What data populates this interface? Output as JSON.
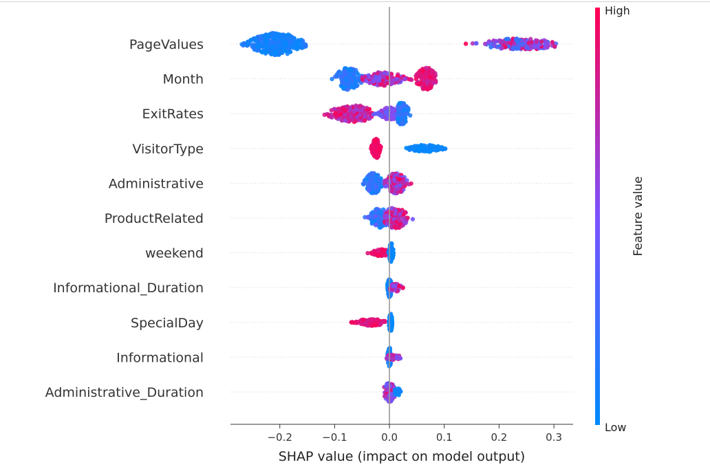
{
  "chart_data": {
    "type": "scatter",
    "subtype": "shap-beeswarm",
    "title": "",
    "xlabel": "SHAP value (impact on model output)",
    "xlim": [
      -0.29,
      0.335
    ],
    "xticks": [
      -0.2,
      -0.1,
      0.0,
      0.1,
      0.2,
      0.3
    ],
    "xtick_labels": [
      "−0.2",
      "−0.1",
      "0.0",
      "0.1",
      "0.2",
      "0.3"
    ],
    "colorbar": {
      "title": "Feature value",
      "high_label": "High",
      "low_label": "Low",
      "low_color": "#008bfb",
      "high_color": "#ff0052"
    },
    "features": [
      {
        "name": "PageValues",
        "clusters": [
          {
            "min": -0.27,
            "max": -0.15,
            "center": -0.205,
            "spread": 0.026,
            "width": 16,
            "count": 360,
            "color_lo": 0.0,
            "color_hi": 0.18
          },
          {
            "min": 0.128,
            "max": 0.305,
            "center": 0.24,
            "spread": 0.035,
            "width": 8,
            "count": 220,
            "color_lo": 0.15,
            "color_hi": 1.0
          }
        ]
      },
      {
        "name": "Month",
        "clusters": [
          {
            "min": -0.105,
            "max": -0.045,
            "center": -0.075,
            "spread": 0.01,
            "width": 16,
            "count": 170,
            "color_lo": 0.0,
            "color_hi": 0.3
          },
          {
            "min": -0.05,
            "max": 0.04,
            "center": -0.01,
            "spread": 0.025,
            "width": 10,
            "count": 160,
            "color_lo": 0.35,
            "color_hi": 1.0
          },
          {
            "min": 0.03,
            "max": 0.085,
            "center": 0.068,
            "spread": 0.01,
            "width": 16,
            "count": 150,
            "color_lo": 0.75,
            "color_hi": 1.0
          }
        ]
      },
      {
        "name": "ExitRates",
        "clusters": [
          {
            "min": -0.14,
            "max": -0.03,
            "center": -0.065,
            "spread": 0.02,
            "width": 12,
            "count": 200,
            "color_lo": 0.6,
            "color_hi": 1.0
          },
          {
            "min": -0.03,
            "max": 0.015,
            "center": 0.0,
            "spread": 0.012,
            "width": 9,
            "count": 120,
            "color_lo": 0.35,
            "color_hi": 0.65
          },
          {
            "min": 0.015,
            "max": 0.05,
            "center": 0.022,
            "spread": 0.006,
            "width": 16,
            "count": 150,
            "color_lo": 0.0,
            "color_hi": 0.3
          }
        ]
      },
      {
        "name": "VisitorType",
        "clusters": [
          {
            "min": -0.035,
            "max": -0.015,
            "center": -0.024,
            "spread": 0.004,
            "width": 14,
            "count": 150,
            "color_lo": 0.9,
            "color_hi": 1.0
          },
          {
            "min": 0.028,
            "max": 0.105,
            "center": 0.066,
            "spread": 0.02,
            "width": 5,
            "count": 110,
            "color_lo": 0.0,
            "color_hi": 0.08
          }
        ]
      },
      {
        "name": "Administrative",
        "clusters": [
          {
            "min": -0.05,
            "max": -0.01,
            "center": -0.03,
            "spread": 0.008,
            "width": 15,
            "count": 140,
            "color_lo": 0.0,
            "color_hi": 0.35
          },
          {
            "min": -0.01,
            "max": 0.04,
            "center": 0.012,
            "spread": 0.01,
            "width": 15,
            "count": 150,
            "color_lo": 0.4,
            "color_hi": 1.0
          }
        ]
      },
      {
        "name": "ProductRelated",
        "clusters": [
          {
            "min": -0.045,
            "max": 0.0,
            "center": -0.018,
            "spread": 0.01,
            "width": 14,
            "count": 130,
            "color_lo": 0.0,
            "color_hi": 0.45
          },
          {
            "min": -0.01,
            "max": 0.048,
            "center": 0.01,
            "spread": 0.01,
            "width": 15,
            "count": 150,
            "color_lo": 0.45,
            "color_hi": 1.0
          }
        ]
      },
      {
        "name": "weekend",
        "clusters": [
          {
            "min": -0.045,
            "max": -0.005,
            "center": -0.015,
            "spread": 0.008,
            "width": 5,
            "count": 90,
            "color_lo": 0.85,
            "color_hi": 1.0
          },
          {
            "min": -0.002,
            "max": 0.008,
            "center": 0.003,
            "spread": 0.002,
            "width": 14,
            "count": 90,
            "color_lo": 0.0,
            "color_hi": 0.08
          }
        ]
      },
      {
        "name": "Informational_Duration",
        "clusters": [
          {
            "min": -0.004,
            "max": 0.006,
            "center": 0.0,
            "spread": 0.002,
            "width": 14,
            "count": 90,
            "color_lo": 0.0,
            "color_hi": 0.15
          },
          {
            "min": 0.0,
            "max": 0.028,
            "center": 0.01,
            "spread": 0.006,
            "width": 6,
            "count": 60,
            "color_lo": 0.45,
            "color_hi": 1.0
          }
        ]
      },
      {
        "name": "SpecialDay",
        "clusters": [
          {
            "min": -0.073,
            "max": -0.005,
            "center": -0.035,
            "spread": 0.015,
            "width": 5,
            "count": 110,
            "color_lo": 0.8,
            "color_hi": 1.0
          },
          {
            "min": -0.002,
            "max": 0.005,
            "center": 0.002,
            "spread": 0.0015,
            "width": 14,
            "count": 90,
            "color_lo": 0.0,
            "color_hi": 0.08
          }
        ]
      },
      {
        "name": "Informational",
        "clusters": [
          {
            "min": -0.004,
            "max": 0.004,
            "center": 0.0,
            "spread": 0.002,
            "width": 14,
            "count": 80,
            "color_lo": 0.0,
            "color_hi": 0.12
          },
          {
            "min": -0.015,
            "max": 0.025,
            "center": 0.005,
            "spread": 0.007,
            "width": 4,
            "count": 50,
            "color_lo": 0.4,
            "color_hi": 1.0
          }
        ]
      },
      {
        "name": "Administrative_Duration",
        "clusters": [
          {
            "min": -0.015,
            "max": 0.013,
            "center": 0.0,
            "spread": 0.004,
            "width": 14,
            "count": 130,
            "color_lo": 0.3,
            "color_hi": 1.0
          },
          {
            "min": 0.01,
            "max": 0.025,
            "center": 0.015,
            "spread": 0.004,
            "width": 5,
            "count": 25,
            "color_lo": 0.0,
            "color_hi": 0.15
          }
        ]
      }
    ]
  }
}
